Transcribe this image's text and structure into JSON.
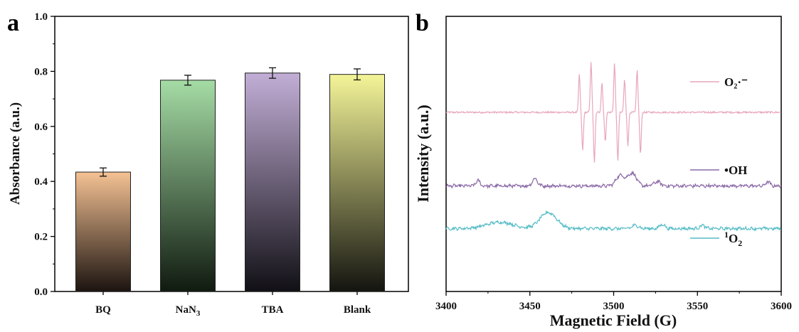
{
  "chart_data": [
    {
      "panel": "a",
      "type": "bar",
      "categories": [
        "BQ",
        "NaN3",
        "TBA",
        "Blank"
      ],
      "values": [
        0.434,
        0.768,
        0.794,
        0.789
      ],
      "errors": [
        0.015,
        0.018,
        0.019,
        0.02
      ],
      "bar_colors": [
        {
          "top": "#f5c294",
          "bottom": "#1c1410"
        },
        {
          "top": "#a5dca5",
          "bottom": "#101a10"
        },
        {
          "top": "#c2aed6",
          "bottom": "#111015"
        },
        {
          "top": "#f4f598",
          "bottom": "#141410"
        }
      ],
      "ylabel": "Absorbance (a.u.)",
      "xlabel": "",
      "ylim": [
        0.0,
        1.0
      ],
      "yticks": [
        "0.0",
        "0.2",
        "0.4",
        "0.6",
        "0.8",
        "1.0"
      ]
    },
    {
      "panel": "b",
      "type": "line",
      "xlabel": "Magnetic Field (G)",
      "ylabel": "Intensity (a.u.)",
      "xlim": [
        3400,
        3600
      ],
      "xticks": [
        "3400",
        "3450",
        "3500",
        "3550",
        "3600"
      ],
      "y_ticks_shown": false,
      "series": [
        {
          "name": "O₂·⁻",
          "color": "#e8a6bc",
          "baseline": 0,
          "noise": 0.8,
          "peaks": [
            {
              "x": 3480.5,
              "a": 36
            },
            {
              "x": 3487.5,
              "a": 48
            },
            {
              "x": 3494.0,
              "a": 28
            },
            {
              "x": 3501.5,
              "a": 46
            },
            {
              "x": 3507.5,
              "a": 31
            },
            {
              "x": 3515.0,
              "a": 40
            }
          ],
          "peak_sep": 2.0
        },
        {
          "name": "•OH",
          "color": "#8a68a6",
          "baseline": -69,
          "noise": 1.3,
          "bumps": [
            {
              "x": 3419,
              "a": 5,
              "w": 1.2
            },
            {
              "x": 3453,
              "a": 7,
              "w": 1.5
            },
            {
              "x": 3504,
              "a": 10,
              "w": 2.5
            },
            {
              "x": 3511,
              "a": 12,
              "w": 2.5
            },
            {
              "x": 3526,
              "a": 4,
              "w": 2
            },
            {
              "x": 3592,
              "a": 4,
              "w": 1.2
            }
          ]
        },
        {
          "name": "1O2",
          "color": "#55bcc6",
          "baseline": -109,
          "noise": 1.2,
          "bumps": [
            {
              "x": 3432,
              "a": 6,
              "w": 8
            },
            {
              "x": 3461,
              "a": 15,
              "w": 5
            },
            {
              "x": 3513,
              "a": 3,
              "w": 2
            },
            {
              "x": 3529,
              "a": 4,
              "w": 1.5
            },
            {
              "x": 3553,
              "a": 3,
              "w": 1.5
            }
          ]
        }
      ]
    }
  ]
}
